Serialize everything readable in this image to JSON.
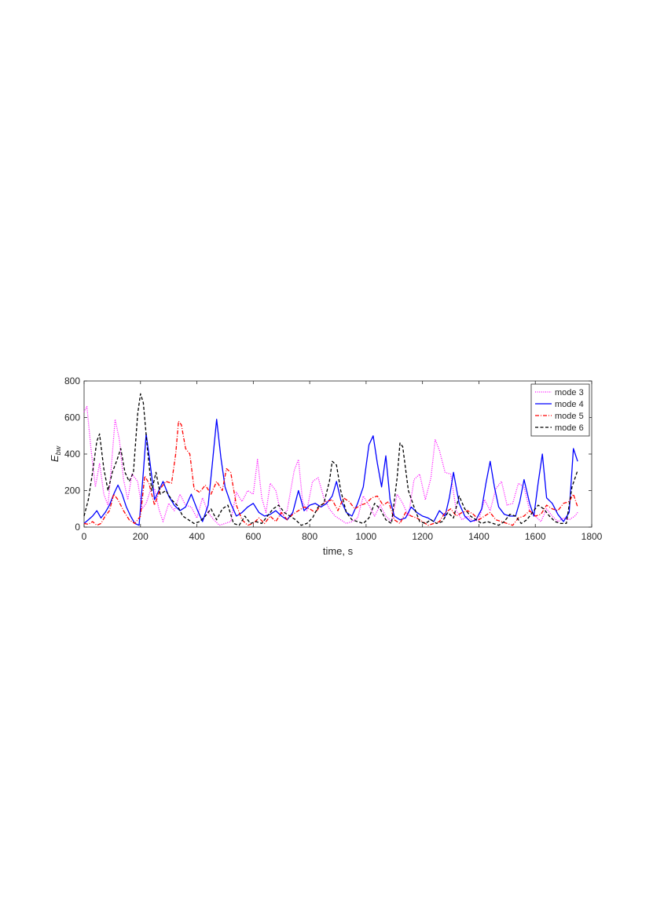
{
  "chart_data": {
    "type": "line",
    "title": "",
    "xlabel": "time, s",
    "ylabel_main": "E",
    "ylabel_sub": "bw",
    "xlim": [
      0,
      1800
    ],
    "ylim": [
      0,
      800
    ],
    "xticks": [
      0,
      200,
      400,
      600,
      800,
      1000,
      1200,
      1400,
      1600,
      1800
    ],
    "yticks": [
      0,
      200,
      400,
      600,
      800
    ],
    "grid": false,
    "legend_position": "top-right",
    "series": [
      {
        "name": "mode 3",
        "color": "#ff00ff",
        "style": "dotted",
        "x": [
          0,
          10,
          25,
          40,
          55,
          70,
          85,
          95,
          110,
          125,
          140,
          155,
          170,
          190,
          205,
          220,
          235,
          250,
          265,
          280,
          300,
          320,
          340,
          360,
          380,
          400,
          420,
          440,
          460,
          480,
          500,
          520,
          540,
          560,
          580,
          600,
          615,
          630,
          645,
          660,
          680,
          700,
          720,
          745,
          760,
          775,
          790,
          810,
          830,
          850,
          870,
          890,
          910,
          930,
          950,
          970,
          990,
          1010,
          1030,
          1050,
          1070,
          1090,
          1110,
          1130,
          1150,
          1170,
          1190,
          1210,
          1230,
          1245,
          1260,
          1280,
          1300,
          1320,
          1340,
          1360,
          1380,
          1400,
          1420,
          1440,
          1460,
          1480,
          1500,
          1520,
          1540,
          1560,
          1580,
          1600,
          1620,
          1640,
          1660,
          1680,
          1700,
          1720,
          1740,
          1750
        ],
        "values": [
          630,
          660,
          420,
          220,
          350,
          180,
          120,
          300,
          590,
          480,
          260,
          150,
          290,
          250,
          100,
          130,
          200,
          210,
          100,
          30,
          130,
          90,
          180,
          120,
          110,
          50,
          160,
          80,
          40,
          10,
          20,
          30,
          190,
          140,
          200,
          180,
          370,
          160,
          80,
          240,
          200,
          60,
          90,
          310,
          370,
          140,
          90,
          250,
          270,
          160,
          100,
          60,
          40,
          20,
          30,
          50,
          170,
          120,
          60,
          120,
          60,
          30,
          180,
          130,
          60,
          260,
          290,
          150,
          270,
          480,
          420,
          300,
          290,
          90,
          40,
          60,
          30,
          40,
          150,
          90,
          210,
          250,
          120,
          130,
          240,
          220,
          90,
          60,
          30,
          100,
          60,
          30,
          50,
          40,
          60,
          80
        ]
      },
      {
        "name": "mode 4",
        "color": "#0000ff",
        "style": "solid",
        "x": [
          0,
          15,
          30,
          45,
          60,
          75,
          90,
          105,
          120,
          135,
          150,
          165,
          180,
          195,
          210,
          220,
          235,
          250,
          265,
          280,
          300,
          320,
          340,
          360,
          380,
          400,
          420,
          440,
          455,
          470,
          485,
          500,
          520,
          540,
          560,
          580,
          600,
          620,
          640,
          660,
          680,
          700,
          720,
          740,
          760,
          780,
          800,
          820,
          840,
          860,
          880,
          895,
          910,
          930,
          950,
          970,
          990,
          1010,
          1025,
          1040,
          1055,
          1070,
          1085,
          1100,
          1120,
          1140,
          1160,
          1180,
          1200,
          1220,
          1240,
          1260,
          1280,
          1295,
          1310,
          1330,
          1350,
          1370,
          1390,
          1410,
          1425,
          1440,
          1455,
          1470,
          1490,
          1510,
          1530,
          1545,
          1560,
          1580,
          1595,
          1610,
          1625,
          1640,
          1660,
          1680,
          1700,
          1720,
          1735,
          1750
        ],
        "values": [
          20,
          40,
          60,
          90,
          50,
          80,
          120,
          180,
          230,
          180,
          110,
          60,
          20,
          10,
          300,
          510,
          340,
          150,
          200,
          250,
          170,
          120,
          90,
          110,
          180,
          100,
          30,
          120,
          350,
          590,
          380,
          220,
          130,
          60,
          80,
          110,
          130,
          80,
          60,
          70,
          90,
          60,
          40,
          80,
          200,
          90,
          120,
          130,
          110,
          130,
          170,
          250,
          150,
          80,
          60,
          130,
          220,
          450,
          500,
          350,
          220,
          390,
          150,
          60,
          40,
          50,
          110,
          80,
          60,
          50,
          30,
          90,
          60,
          160,
          300,
          130,
          60,
          30,
          40,
          100,
          240,
          360,
          220,
          110,
          70,
          60,
          60,
          140,
          260,
          130,
          60,
          240,
          400,
          160,
          130,
          70,
          30,
          80,
          430,
          360
        ]
      },
      {
        "name": "mode 5",
        "color": "#ff0000",
        "style": "dashdot",
        "x": [
          0,
          15,
          30,
          45,
          60,
          75,
          90,
          105,
          120,
          140,
          160,
          180,
          200,
          215,
          230,
          250,
          270,
          290,
          310,
          325,
          335,
          345,
          360,
          375,
          390,
          410,
          430,
          450,
          470,
          490,
          505,
          520,
          540,
          560,
          580,
          600,
          620,
          640,
          660,
          680,
          700,
          720,
          740,
          760,
          780,
          800,
          820,
          840,
          860,
          880,
          900,
          920,
          940,
          960,
          980,
          1000,
          1020,
          1040,
          1060,
          1080,
          1100,
          1120,
          1140,
          1160,
          1180,
          1200,
          1220,
          1240,
          1260,
          1280,
          1300,
          1320,
          1340,
          1360,
          1380,
          1400,
          1420,
          1440,
          1460,
          1480,
          1500,
          1520,
          1540,
          1560,
          1580,
          1600,
          1620,
          1640,
          1660,
          1680,
          1700,
          1720,
          1735,
          1750
        ],
        "values": [
          20,
          15,
          30,
          10,
          20,
          60,
          90,
          180,
          150,
          90,
          40,
          20,
          60,
          280,
          240,
          120,
          210,
          250,
          240,
          400,
          580,
          560,
          430,
          400,
          210,
          190,
          230,
          180,
          250,
          200,
          320,
          300,
          120,
          40,
          10,
          20,
          50,
          20,
          60,
          30,
          80,
          40,
          70,
          90,
          110,
          100,
          80,
          120,
          140,
          150,
          90,
          160,
          140,
          100,
          120,
          130,
          160,
          170,
          120,
          140,
          40,
          20,
          80,
          60,
          50,
          30,
          10,
          20,
          30,
          80,
          100,
          60,
          80,
          90,
          70,
          40,
          60,
          80,
          40,
          30,
          20,
          10,
          50,
          60,
          90,
          60,
          70,
          120,
          100,
          90,
          130,
          140,
          180,
          110
        ]
      },
      {
        "name": "mode 6",
        "color": "#000000",
        "style": "dashed",
        "x": [
          0,
          15,
          30,
          45,
          55,
          70,
          85,
          100,
          115,
          130,
          145,
          160,
          175,
          190,
          200,
          210,
          225,
          240,
          255,
          270,
          290,
          310,
          330,
          350,
          370,
          390,
          410,
          430,
          450,
          470,
          490,
          510,
          530,
          550,
          570,
          590,
          610,
          630,
          650,
          670,
          690,
          710,
          730,
          750,
          770,
          790,
          810,
          830,
          850,
          870,
          880,
          895,
          910,
          930,
          950,
          970,
          990,
          1010,
          1030,
          1050,
          1070,
          1090,
          1110,
          1120,
          1130,
          1150,
          1170,
          1190,
          1210,
          1230,
          1250,
          1270,
          1290,
          1310,
          1330,
          1350,
          1370,
          1390,
          1410,
          1430,
          1450,
          1470,
          1490,
          1510,
          1530,
          1550,
          1570,
          1590,
          1610,
          1630,
          1650,
          1670,
          1690,
          1710,
          1730,
          1750
        ],
        "values": [
          60,
          150,
          300,
          470,
          510,
          320,
          200,
          300,
          360,
          430,
          300,
          250,
          300,
          620,
          730,
          680,
          420,
          200,
          300,
          180,
          200,
          150,
          120,
          60,
          40,
          20,
          30,
          60,
          100,
          40,
          100,
          120,
          20,
          10,
          60,
          20,
          30,
          20,
          60,
          100,
          120,
          80,
          60,
          40,
          10,
          20,
          50,
          110,
          130,
          250,
          360,
          340,
          200,
          80,
          40,
          30,
          20,
          50,
          130,
          100,
          40,
          20,
          270,
          460,
          440,
          200,
          110,
          30,
          20,
          40,
          20,
          30,
          80,
          50,
          170,
          100,
          60,
          40,
          20,
          30,
          20,
          10,
          30,
          70,
          60,
          20,
          40,
          80,
          120,
          100,
          60,
          30,
          20,
          20,
          220,
          310
        ]
      }
    ]
  }
}
